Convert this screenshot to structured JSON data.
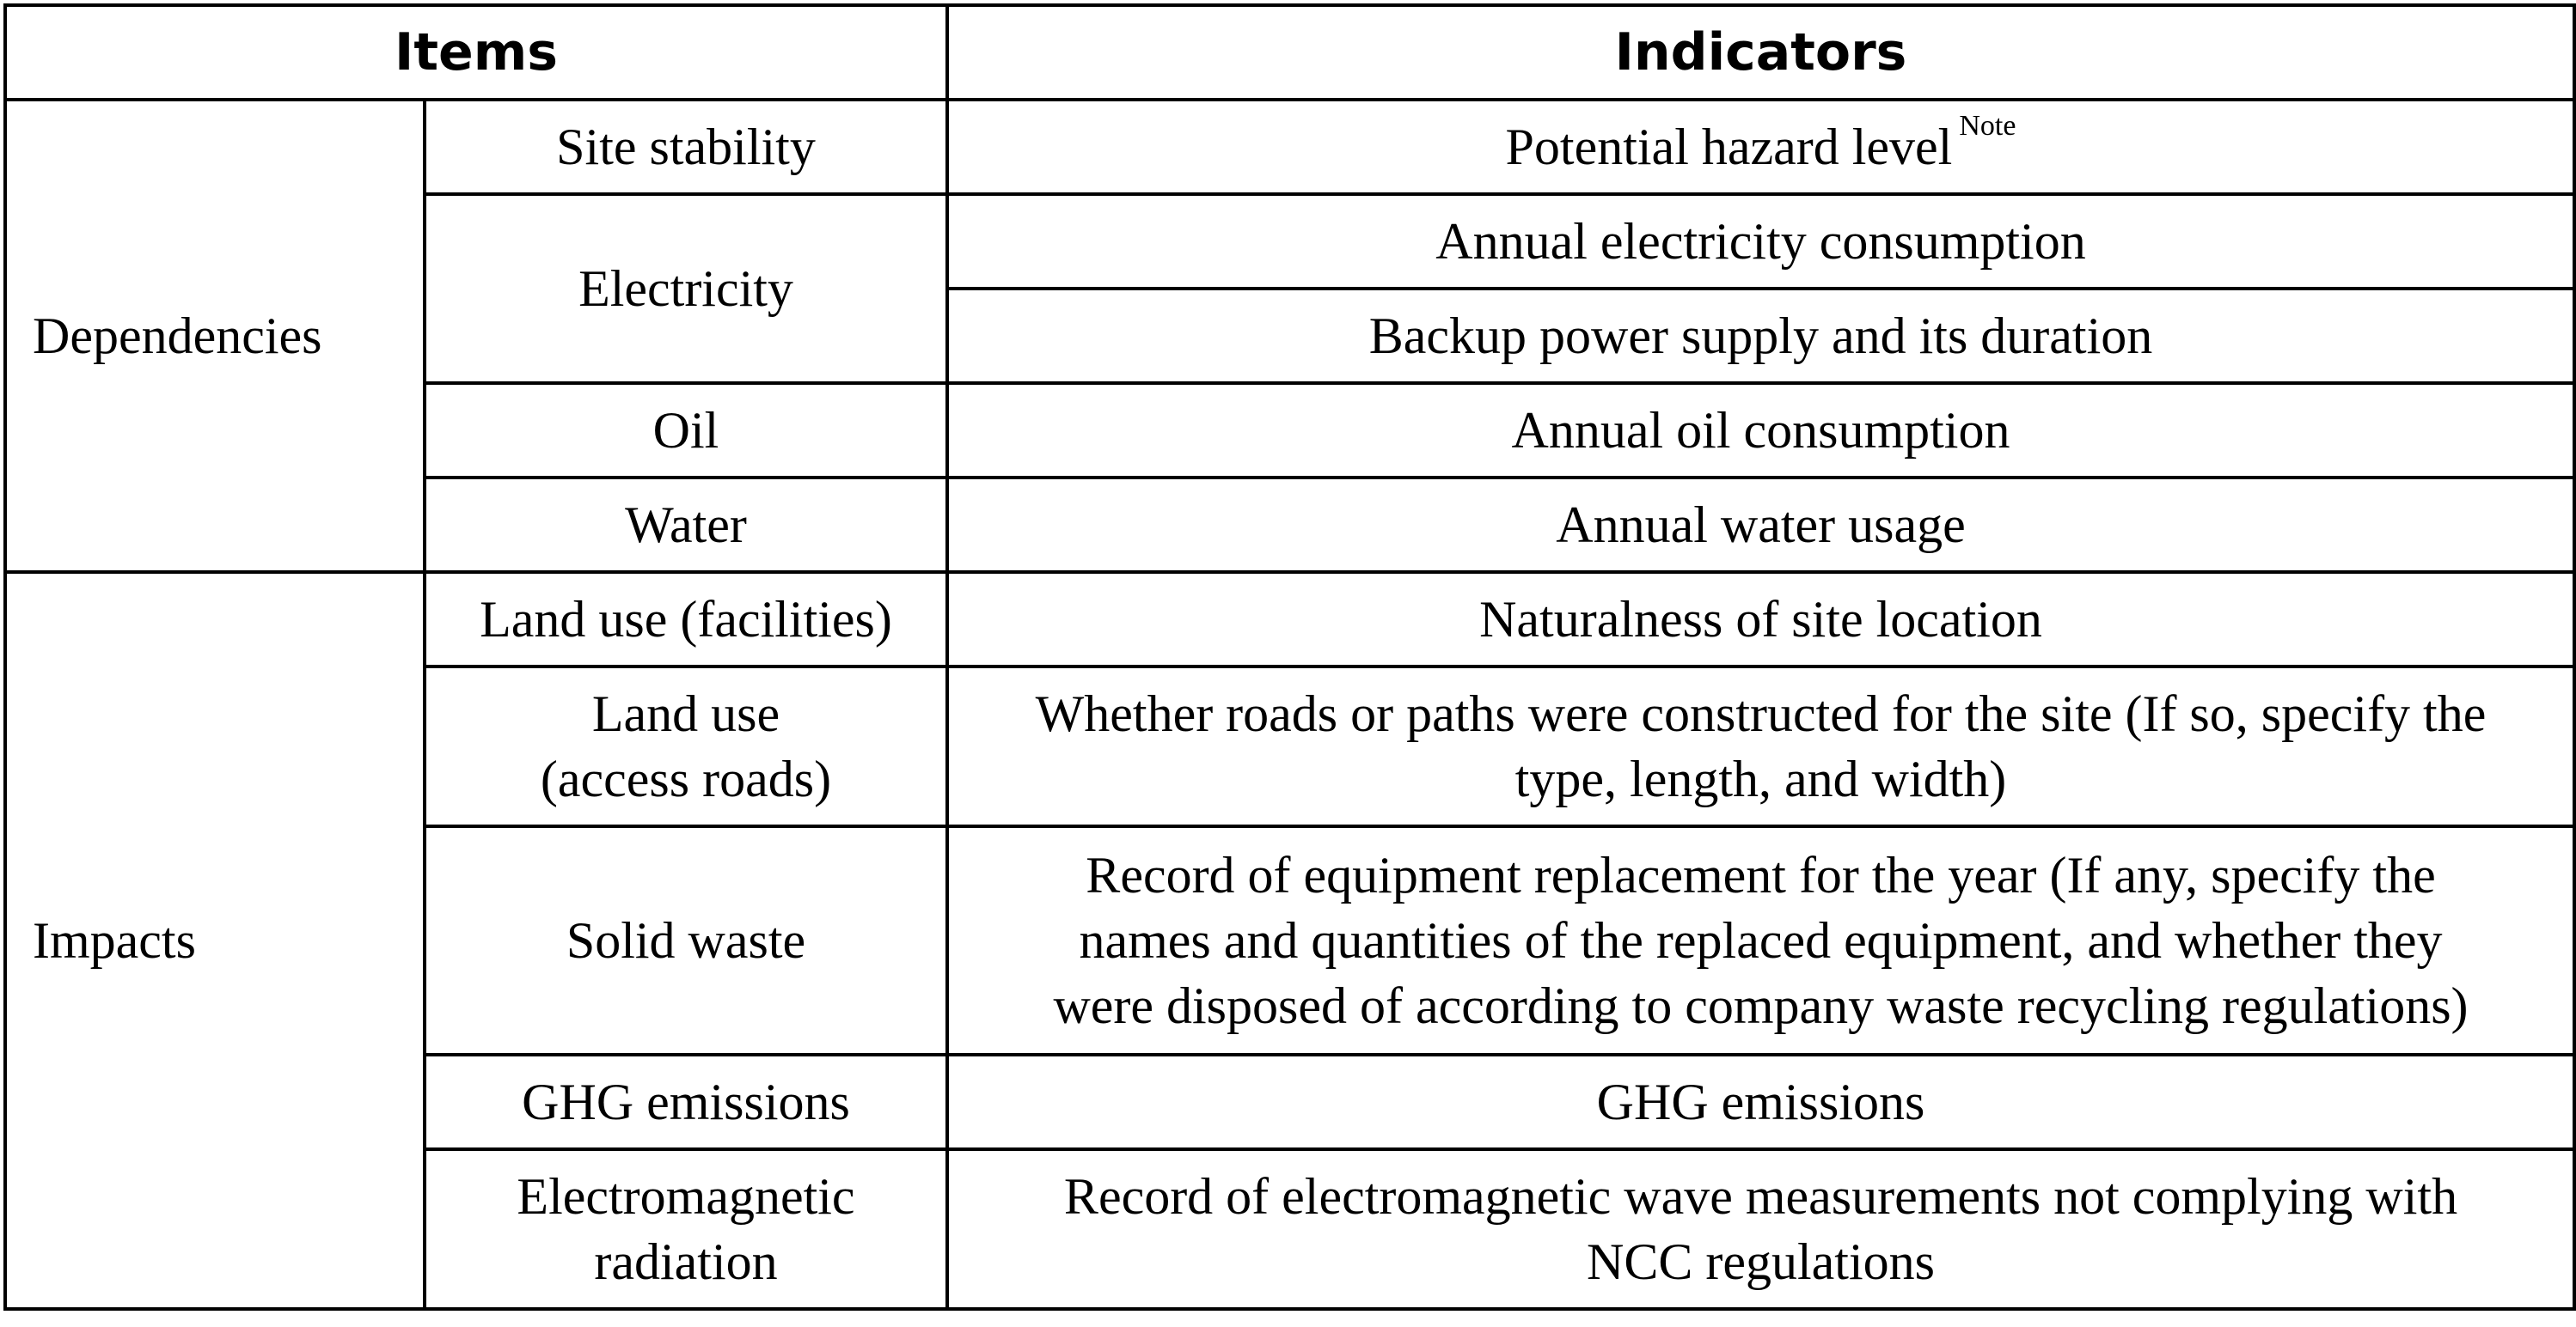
{
  "table": {
    "headers": {
      "items": "Items",
      "indicators": "Indicators"
    },
    "groups": {
      "dependencies": "Dependencies",
      "impacts": "Impacts"
    },
    "rows": [
      {
        "item": "Site stability",
        "indicator": "Potential hazard level",
        "note": "Note"
      },
      {
        "item": "Electricity",
        "indicator": "Annual electricity consumption"
      },
      {
        "indicator": "Backup power supply and its duration"
      },
      {
        "item": "Oil",
        "indicator": "Annual oil consumption"
      },
      {
        "item": "Water",
        "indicator": "Annual water usage"
      },
      {
        "item": "Land use (facilities)",
        "indicator": "Naturalness of site location"
      },
      {
        "item": "Land use\n(access roads)",
        "indicator": "Whether roads or paths were constructed for the site (If so, specify the\ntype, length, and width)"
      },
      {
        "item": "Solid waste",
        "indicator": "Record of equipment replacement for the year (If any, specify the\nnames and quantities of the replaced equipment, and whether they\nwere disposed of according to company waste recycling regulations)"
      },
      {
        "item": "GHG emissions",
        "indicator": "GHG emissions"
      },
      {
        "item": "Electromagnetic\nradiation",
        "indicator": "Record of electromagnetic wave measurements not complying with\nNCC regulations"
      }
    ]
  }
}
